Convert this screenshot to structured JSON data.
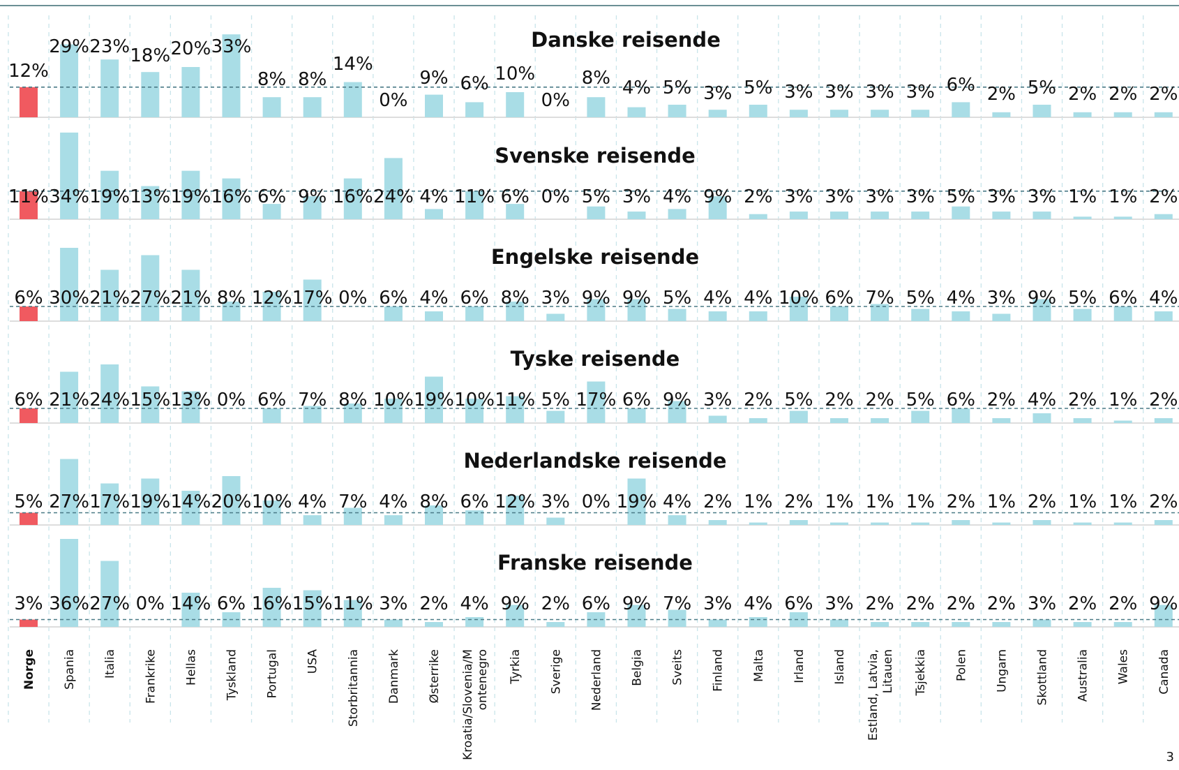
{
  "page_number": "3",
  "chart_data": {
    "type": "bar",
    "categories": [
      "Norge",
      "Spania",
      "Italia",
      "Frankrike",
      "Hellas",
      "Tyskland",
      "Portugal",
      "USA",
      "Storbritannia",
      "Danmark",
      "Østerrike",
      "Kroatia/Slovenia/Montenegro",
      "Tyrkia",
      "Sverige",
      "Nederland",
      "Belgia",
      "Sveits",
      "Finland",
      "Malta",
      "Irland",
      "Island",
      "Estland, Latvia, Litauen",
      "Tsjekkia",
      "Polen",
      "Ungarn",
      "Skottland",
      "Australia",
      "Wales",
      "Canada"
    ],
    "category_lines": [
      [
        "Norge"
      ],
      [
        "Spania"
      ],
      [
        "Italia"
      ],
      [
        "Frankrike"
      ],
      [
        "Hellas"
      ],
      [
        "Tyskland"
      ],
      [
        "Portugal"
      ],
      [
        "USA"
      ],
      [
        "Storbritannia"
      ],
      [
        "Danmark"
      ],
      [
        "Østerrike"
      ],
      [
        "Kroatia/Slovenia/M",
        "ontenegro"
      ],
      [
        "Tyrkia"
      ],
      [
        "Sverige"
      ],
      [
        "Nederland"
      ],
      [
        "Belgia"
      ],
      [
        "Sveits"
      ],
      [
        "Finland"
      ],
      [
        "Malta"
      ],
      [
        "Irland"
      ],
      [
        "Island"
      ],
      [
        "Estland, Latvia,",
        "Litauen"
      ],
      [
        "Tsjekkia"
      ],
      [
        "Polen"
      ],
      [
        "Ungarn"
      ],
      [
        "Skottland"
      ],
      [
        "Australia"
      ],
      [
        "Wales"
      ],
      [
        "Canada"
      ]
    ],
    "highlight_category": "Norge",
    "unit": "%",
    "grid": true,
    "colors": {
      "highlight": "#f05a60",
      "bar": "#a9dde6",
      "reference_line": "#4a7a86",
      "gridline": "#c8e4ea",
      "top_rule": "#6b8f95",
      "baseline": "#dddddd"
    },
    "series": [
      {
        "name": "Danske reisende",
        "values": [
          12,
          29,
          23,
          18,
          20,
          33,
          8,
          8,
          14,
          0,
          9,
          6,
          10,
          0,
          8,
          4,
          5,
          3,
          5,
          3,
          3,
          3,
          3,
          6,
          2,
          5,
          2,
          2,
          2
        ]
      },
      {
        "name": "Svenske reisende",
        "values": [
          11,
          34,
          19,
          13,
          19,
          16,
          6,
          9,
          16,
          24,
          4,
          11,
          6,
          0,
          5,
          3,
          4,
          9,
          2,
          3,
          3,
          3,
          3,
          5,
          3,
          3,
          1,
          1,
          2
        ]
      },
      {
        "name": "Engelske reisende",
        "values": [
          6,
          30,
          21,
          27,
          21,
          8,
          12,
          17,
          0,
          6,
          4,
          6,
          8,
          3,
          9,
          9,
          5,
          4,
          4,
          10,
          6,
          7,
          5,
          4,
          3,
          9,
          5,
          6,
          4
        ]
      },
      {
        "name": "Tyske reisende",
        "values": [
          6,
          21,
          24,
          15,
          13,
          0,
          6,
          7,
          8,
          10,
          19,
          10,
          11,
          5,
          17,
          6,
          9,
          3,
          2,
          5,
          2,
          2,
          5,
          6,
          2,
          4,
          2,
          1,
          2
        ]
      },
      {
        "name": "Nederlandske reisende",
        "values": [
          5,
          27,
          17,
          19,
          14,
          20,
          10,
          4,
          7,
          4,
          8,
          6,
          12,
          3,
          0,
          19,
          4,
          2,
          1,
          2,
          1,
          1,
          1,
          2,
          1,
          2,
          1,
          1,
          2
        ]
      },
      {
        "name": "Franske reisende",
        "values": [
          3,
          36,
          27,
          0,
          14,
          6,
          16,
          15,
          11,
          3,
          2,
          4,
          9,
          2,
          6,
          9,
          7,
          3,
          4,
          6,
          3,
          2,
          2,
          2,
          2,
          3,
          2,
          2,
          9
        ]
      }
    ]
  }
}
